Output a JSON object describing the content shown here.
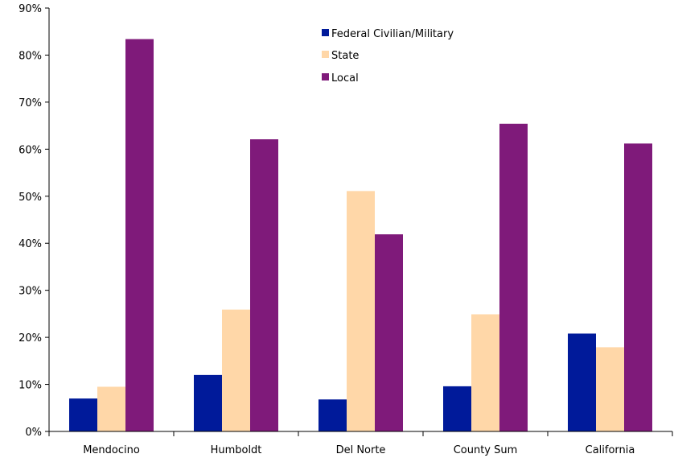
{
  "chart_data": {
    "type": "bar",
    "title": "",
    "xlabel": "",
    "ylabel": "",
    "categories": [
      "Mendocino",
      "Humboldt",
      "Del Norte",
      "County Sum",
      "California"
    ],
    "series": [
      {
        "name": "Federal Civilian/Military",
        "color": "#001a9a",
        "values": [
          7,
          12,
          6.8,
          9.6,
          20.8
        ]
      },
      {
        "name": "State",
        "color": "#ffd7a8",
        "values": [
          9.5,
          25.9,
          51.1,
          24.9,
          17.9
        ]
      },
      {
        "name": "Local",
        "color": "#7f1a7a",
        "values": [
          83.4,
          62.1,
          41.9,
          65.4,
          61.2
        ]
      }
    ],
    "ylim": [
      0,
      90
    ],
    "yticks": [
      0,
      10,
      20,
      30,
      40,
      50,
      60,
      70,
      80,
      90
    ],
    "ytick_labels": [
      "0%",
      "10%",
      "20%",
      "30%",
      "40%",
      "50%",
      "60%",
      "70%",
      "80%",
      "90%"
    ],
    "grid": false,
    "legend_position": "top-center"
  }
}
